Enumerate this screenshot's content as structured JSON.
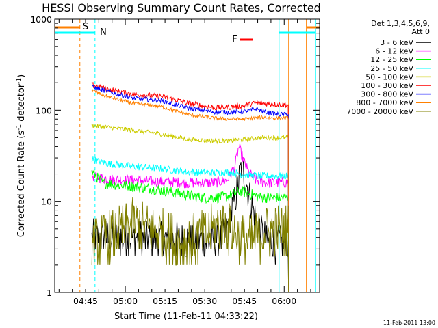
{
  "chart_data": {
    "type": "line",
    "title": "HESSI Observing Summary Count Rates, Corrected",
    "xlabel": "Start Time (11-Feb-11 04:33:22)",
    "ylabel": "Corrected Count Rate (s⁻¹ detector⁻¹)",
    "yscale": "log",
    "ylim": [
      1,
      1000
    ],
    "y_ticks": [
      "1",
      "10",
      "100",
      "1000"
    ],
    "xlim_minutes": [
      0,
      100
    ],
    "x_ticks": [
      {
        "t": 11.63,
        "label": "04:45"
      },
      {
        "t": 26.63,
        "label": "05:00"
      },
      {
        "t": 41.63,
        "label": "05:15"
      },
      {
        "t": 56.63,
        "label": "05:30"
      },
      {
        "t": 71.63,
        "label": "05:45"
      },
      {
        "t": 86.63,
        "label": "06:00"
      }
    ],
    "legend_title": [
      "Det 1,3,4,5,6,9,",
      "Att 0"
    ],
    "legend_position": "right",
    "series": [
      {
        "name": "3 - 6 keV",
        "color": "#000000",
        "noise": 0.2,
        "points": [
          [
            14,
            4
          ],
          [
            30,
            4
          ],
          [
            45,
            3.8
          ],
          [
            60,
            3.6
          ],
          [
            63,
            3.8
          ],
          [
            66,
            6
          ],
          [
            69,
            14
          ],
          [
            70.5,
            24
          ],
          [
            72,
            18
          ],
          [
            74,
            10
          ],
          [
            76,
            6
          ],
          [
            78,
            4.5
          ],
          [
            80,
            3.6
          ],
          [
            82,
            3.5
          ],
          [
            84,
            3.5
          ]
        ]
      },
      {
        "name": "6 - 12 keV",
        "color": "#ff00ff",
        "noise": 0.06,
        "points": [
          [
            14,
            19
          ],
          [
            20,
            17.5
          ],
          [
            30,
            17
          ],
          [
            40,
            16.5
          ],
          [
            50,
            16
          ],
          [
            60,
            16
          ],
          [
            65,
            17
          ],
          [
            68,
            24
          ],
          [
            69.5,
            40
          ],
          [
            71,
            30
          ],
          [
            73,
            21
          ],
          [
            76,
            17
          ],
          [
            80,
            16
          ],
          [
            84,
            16
          ]
        ]
      },
      {
        "name": "12 - 25 keV",
        "color": "#00ff00",
        "noise": 0.06,
        "points": [
          [
            14,
            21
          ],
          [
            18,
            16
          ],
          [
            25,
            15
          ],
          [
            35,
            14
          ],
          [
            45,
            12.5
          ],
          [
            55,
            11
          ],
          [
            62,
            11
          ],
          [
            66,
            11.5
          ],
          [
            70,
            13
          ],
          [
            74,
            12
          ],
          [
            78,
            11
          ],
          [
            84,
            11
          ]
        ]
      },
      {
        "name": "25 - 50 keV",
        "color": "#00ffff",
        "noise": 0.04,
        "points": [
          [
            14,
            29
          ],
          [
            20,
            26
          ],
          [
            30,
            24
          ],
          [
            40,
            23
          ],
          [
            50,
            21
          ],
          [
            60,
            20.5
          ],
          [
            66,
            21
          ],
          [
            70,
            20
          ],
          [
            76,
            19
          ],
          [
            84,
            19
          ]
        ]
      },
      {
        "name": "50 - 100 keV",
        "color": "#cccc00",
        "noise": 0.025,
        "points": [
          [
            14,
            68
          ],
          [
            20,
            65
          ],
          [
            30,
            60
          ],
          [
            40,
            55
          ],
          [
            50,
            48
          ],
          [
            60,
            46
          ],
          [
            66,
            46
          ],
          [
            72,
            48
          ],
          [
            78,
            50
          ],
          [
            84,
            50
          ]
        ]
      },
      {
        "name": "100 - 300 keV",
        "color": "#ff0000",
        "noise": 0.03,
        "points": [
          [
            14,
            190
          ],
          [
            20,
            170
          ],
          [
            30,
            150
          ],
          [
            40,
            143
          ],
          [
            50,
            120
          ],
          [
            60,
            107
          ],
          [
            66,
            108
          ],
          [
            72,
            113
          ],
          [
            76,
            120
          ],
          [
            80,
            118
          ],
          [
            84,
            115
          ]
        ]
      },
      {
        "name": "300 - 800 keV",
        "color": "#0000ff",
        "noise": 0.025,
        "points": [
          [
            14,
            180
          ],
          [
            20,
            160
          ],
          [
            30,
            135
          ],
          [
            40,
            128
          ],
          [
            50,
            106
          ],
          [
            60,
            96
          ],
          [
            66,
            95
          ],
          [
            72,
            97
          ],
          [
            76,
            103
          ],
          [
            80,
            95
          ],
          [
            84,
            90
          ]
        ]
      },
      {
        "name": "800 - 7000 keV",
        "color": "#ff8000",
        "noise": 0.02,
        "points": [
          [
            14,
            165
          ],
          [
            20,
            140
          ],
          [
            30,
            118
          ],
          [
            40,
            110
          ],
          [
            50,
            90
          ],
          [
            60,
            82
          ],
          [
            66,
            80
          ],
          [
            72,
            80
          ],
          [
            78,
            84
          ],
          [
            84,
            82
          ]
        ]
      },
      {
        "name": "7000 - 20000 keV",
        "color": "#808000",
        "noise": 0.3,
        "points": [
          [
            14,
            3.2
          ],
          [
            20,
            4
          ],
          [
            30,
            5.5
          ],
          [
            40,
            4.5
          ],
          [
            48,
            3.5
          ],
          [
            56,
            4
          ],
          [
            62,
            5.5
          ],
          [
            66,
            5
          ],
          [
            70,
            4
          ],
          [
            74,
            3.5
          ],
          [
            78,
            4.5
          ],
          [
            84,
            4.8
          ]
        ]
      }
    ],
    "annotations": [
      {
        "text": "S",
        "color": "#ff8000"
      },
      {
        "text": "N",
        "color": "#00ffff"
      },
      {
        "text": "F",
        "color": "#ff0000"
      }
    ],
    "timestamp": "11-Feb-2011 13:00"
  }
}
